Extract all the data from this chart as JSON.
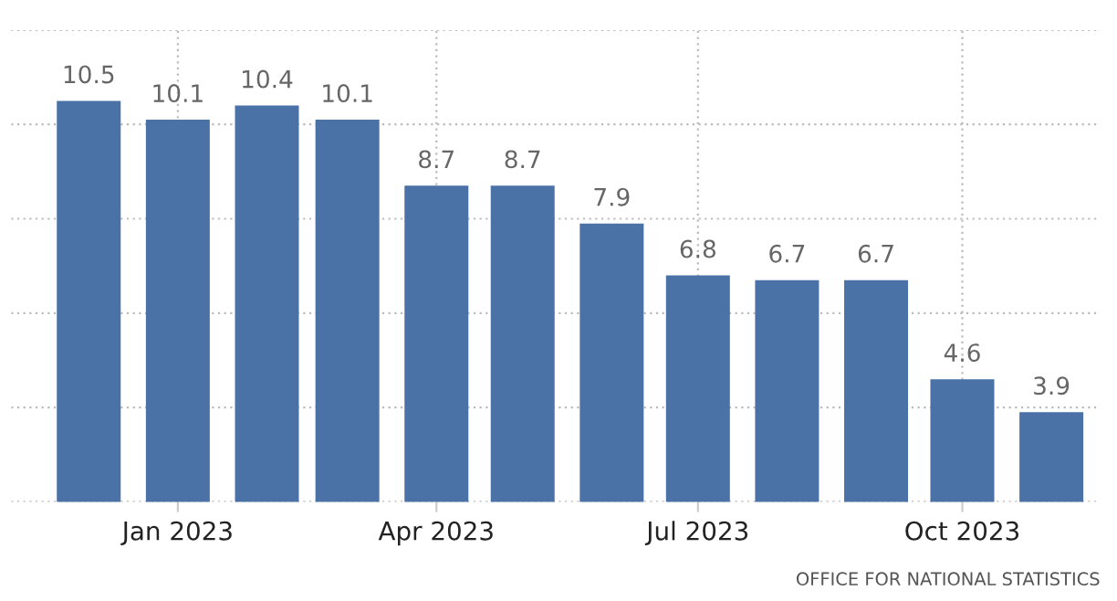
{
  "chart_data": {
    "type": "bar",
    "x": [
      "2022-12",
      "2023-01",
      "2023-02",
      "2023-03",
      "2023-04",
      "2023-05",
      "2023-06",
      "2023-07",
      "2023-08",
      "2023-09",
      "2023-10",
      "2023-11"
    ],
    "values": [
      10.5,
      10.1,
      10.4,
      10.1,
      8.7,
      8.7,
      7.9,
      6.8,
      6.7,
      6.7,
      4.6,
      3.9
    ],
    "color": "#4a72a6",
    "data_labels": true,
    "xlim": [
      "2022-11-04",
      "2023-11-18"
    ],
    "xticks": [
      {
        "value": "2023-01",
        "label": "Jan 2023"
      },
      {
        "value": "2023-04",
        "label": "Apr 2023"
      },
      {
        "value": "2023-07",
        "label": "Jul 2023"
      },
      {
        "value": "2023-10",
        "label": "Oct 2023"
      }
    ],
    "ylim": [
      2,
      12
    ],
    "yticks": [
      {
        "value": 2,
        "label": null
      },
      {
        "value": 4,
        "label": null
      },
      {
        "value": 6,
        "label": null
      },
      {
        "value": 8,
        "label": null
      },
      {
        "value": 10,
        "label": null
      },
      {
        "value": 12,
        "label": null
      }
    ],
    "tick_labels": "x",
    "grid": true,
    "annotations": [
      "OFFICE FOR NATIONAL STATISTICS"
    ]
  }
}
